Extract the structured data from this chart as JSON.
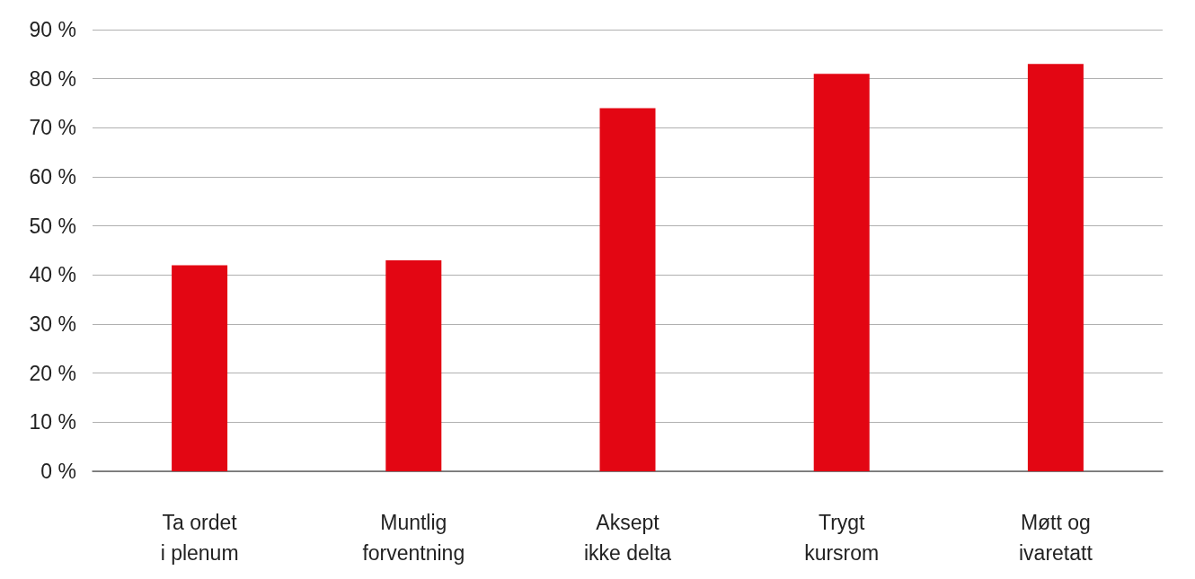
{
  "chart_data": {
    "type": "bar",
    "categories": [
      "Ta ordet\ni plenum",
      "Muntlig\nforventning",
      "Aksept\nikke delta",
      "Trygt\nkursrom",
      "Møtt og\nivaretatt"
    ],
    "values": [
      42,
      43,
      74,
      81,
      83
    ],
    "color": "#e30613",
    "ylim": [
      0,
      90
    ],
    "yticks": [
      {
        "value": 0,
        "label": "0 %"
      },
      {
        "value": 10,
        "label": "10 %"
      },
      {
        "value": 20,
        "label": "20 %"
      },
      {
        "value": 30,
        "label": "30 %"
      },
      {
        "value": 40,
        "label": "40 %"
      },
      {
        "value": 50,
        "label": "50 %"
      },
      {
        "value": 60,
        "label": "60 %"
      },
      {
        "value": 70,
        "label": "70 %"
      },
      {
        "value": 80,
        "label": "80 %"
      },
      {
        "value": 90,
        "label": "90 %"
      }
    ],
    "grid": "y"
  }
}
